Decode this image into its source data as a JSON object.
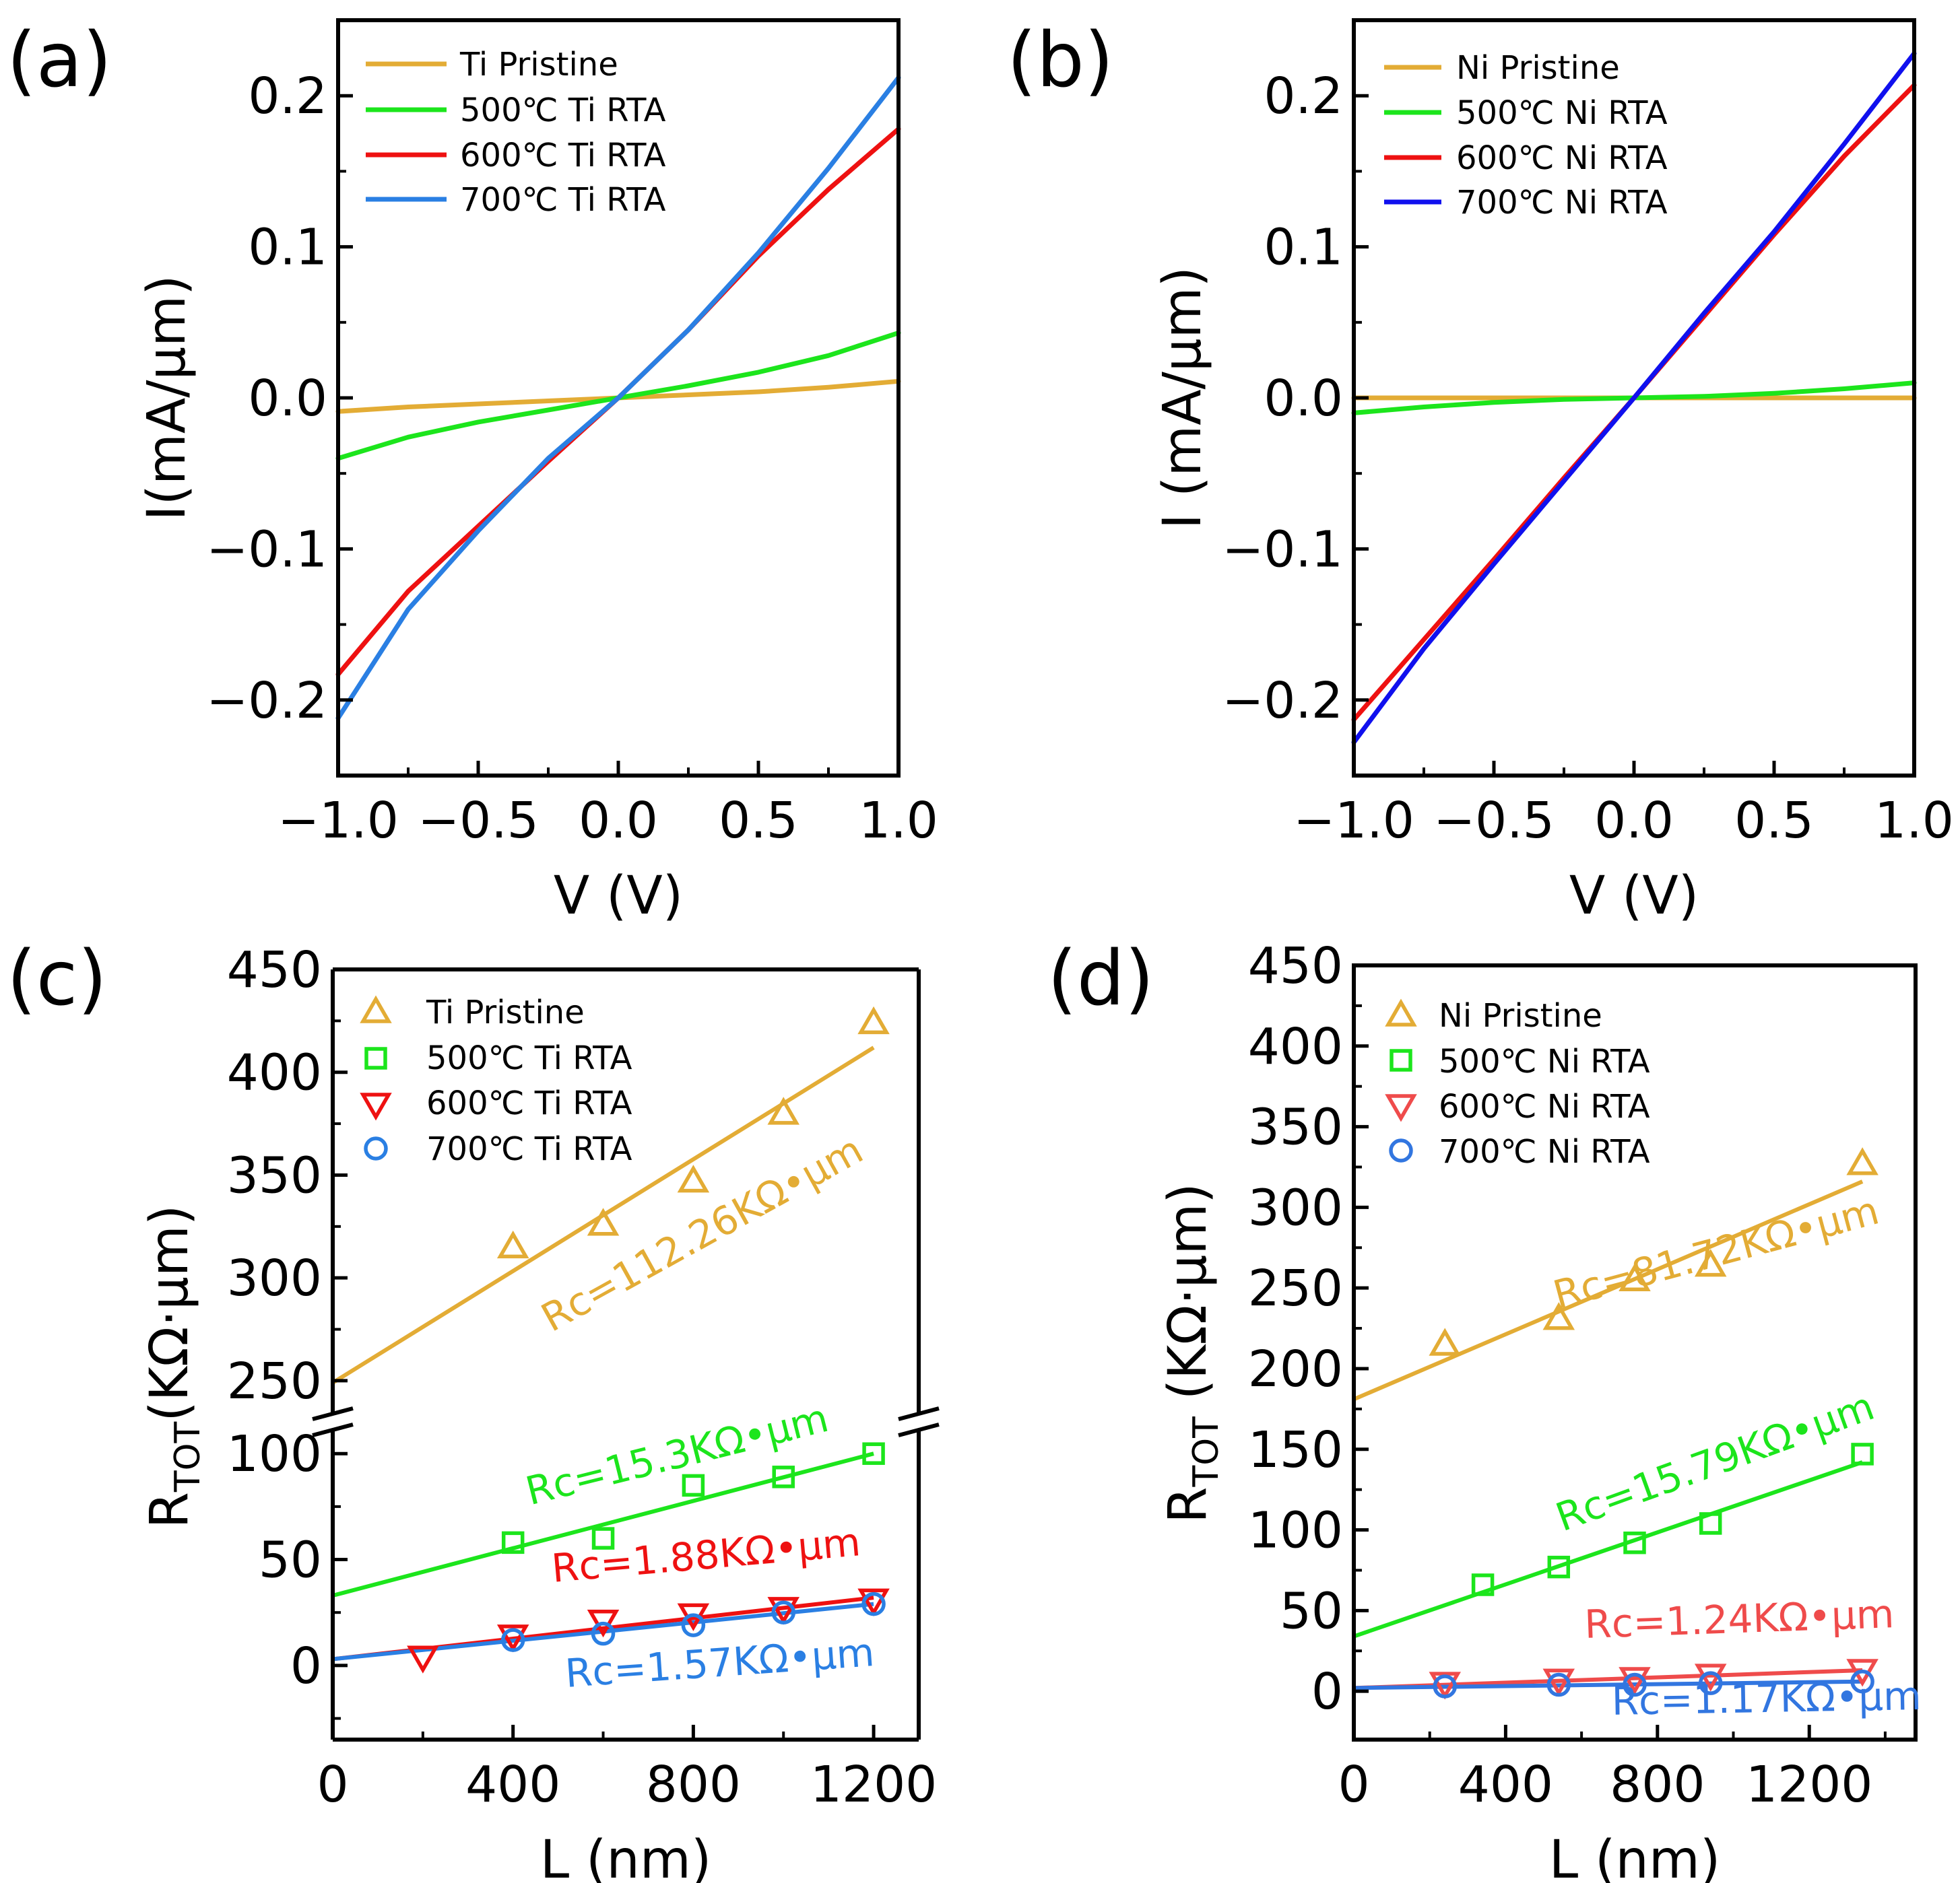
{
  "colors": {
    "gold": "#E3AC35",
    "green": "#1CE51C",
    "red": "#EE1111",
    "blue_a": "#2A7FE3",
    "blue_b": "#1010EE",
    "red_d": "#EF4B4B",
    "blue_d": "#3276E0",
    "axis": "#000000"
  },
  "chart_data": [
    {
      "panel": "(a)",
      "type": "line",
      "xlabel": "V (V)",
      "ylabel": "I(mA/μm)",
      "xlim": [
        -1.0,
        1.0
      ],
      "ylim": [
        -0.25,
        0.25
      ],
      "xticks": [
        "−1.0",
        "−0.5",
        "0.0",
        "0.5",
        "1.0"
      ],
      "xtick_values": [
        -1.0,
        -0.5,
        0.0,
        0.5,
        1.0
      ],
      "yticks": [
        "−0.2",
        "−0.1",
        "0.0",
        "0.1",
        "0.2"
      ],
      "ytick_values": [
        -0.2,
        -0.1,
        0.0,
        0.1,
        0.2
      ],
      "legend": [
        "Ti Pristine",
        "500℃ Ti RTA",
        "600℃ Ti RTA",
        "700℃ Ti RTA"
      ],
      "series": [
        {
          "name": "Ti Pristine",
          "color": "gold",
          "x": [
            -1.0,
            -0.75,
            -0.5,
            -0.25,
            0.0,
            0.25,
            0.5,
            0.75,
            1.0
          ],
          "y": [
            -0.009,
            -0.006,
            -0.004,
            -0.002,
            0.0,
            0.002,
            0.004,
            0.007,
            0.011
          ]
        },
        {
          "name": "500℃ Ti RTA",
          "color": "green",
          "x": [
            -1.0,
            -0.75,
            -0.5,
            -0.25,
            0.0,
            0.25,
            0.5,
            0.75,
            1.0
          ],
          "y": [
            -0.04,
            -0.026,
            -0.016,
            -0.008,
            0.0,
            0.008,
            0.017,
            0.028,
            0.043
          ]
        },
        {
          "name": "600℃ Ti RTA",
          "color": "red",
          "x": [
            -1.0,
            -0.75,
            -0.5,
            -0.25,
            0.0,
            0.25,
            0.5,
            0.75,
            1.0
          ],
          "y": [
            -0.183,
            -0.128,
            -0.085,
            -0.042,
            0.0,
            0.045,
            0.094,
            0.138,
            0.178
          ]
        },
        {
          "name": "700℃ Ti RTA",
          "color": "blue_a",
          "x": [
            -1.0,
            -0.75,
            -0.5,
            -0.25,
            0.0,
            0.25,
            0.5,
            0.75,
            1.0
          ],
          "y": [
            -0.212,
            -0.14,
            -0.088,
            -0.04,
            0.0,
            0.045,
            0.096,
            0.152,
            0.212
          ]
        }
      ]
    },
    {
      "panel": "(b)",
      "type": "line",
      "xlabel": "V (V)",
      "ylabel": "I (mA/μm)",
      "xlim": [
        -1.0,
        1.0
      ],
      "ylim": [
        -0.25,
        0.25
      ],
      "xticks": [
        "−1.0",
        "−0.5",
        "0.0",
        "0.5",
        "1.0"
      ],
      "xtick_values": [
        -1.0,
        -0.5,
        0.0,
        0.5,
        1.0
      ],
      "yticks": [
        "−0.2",
        "−0.1",
        "0.0",
        "0.1",
        "0.2"
      ],
      "ytick_values": [
        -0.2,
        -0.1,
        0.0,
        0.1,
        0.2
      ],
      "legend": [
        "Ni Pristine",
        "500℃ Ni RTA",
        "600℃ Ni RTA",
        "700℃ Ni RTA"
      ],
      "series": [
        {
          "name": "Ni Pristine",
          "color": "gold",
          "x": [
            -1.0,
            -0.5,
            0.0,
            0.5,
            1.0
          ],
          "y": [
            0.0,
            0.0,
            0.0,
            0.0,
            0.0
          ]
        },
        {
          "name": "500℃ Ni RTA",
          "color": "green",
          "x": [
            -1.0,
            -0.75,
            -0.5,
            -0.25,
            0.0,
            0.25,
            0.5,
            0.75,
            1.0
          ],
          "y": [
            -0.01,
            -0.006,
            -0.003,
            -0.001,
            0.0,
            0.001,
            0.003,
            0.006,
            0.01
          ]
        },
        {
          "name": "600℃ Ni RTA",
          "color": "red",
          "x": [
            -1.0,
            -0.75,
            -0.5,
            -0.25,
            0.0,
            0.25,
            0.5,
            0.75,
            1.0
          ],
          "y": [
            -0.213,
            -0.16,
            -0.107,
            -0.053,
            0.0,
            0.054,
            0.108,
            0.16,
            0.207
          ]
        },
        {
          "name": "700℃ Ni RTA",
          "color": "blue_b",
          "x": [
            -1.0,
            -0.75,
            -0.5,
            -0.25,
            0.0,
            0.25,
            0.5,
            0.75,
            1.0
          ],
          "y": [
            -0.228,
            -0.166,
            -0.11,
            -0.055,
            0.0,
            0.056,
            0.11,
            0.168,
            0.228
          ]
        }
      ]
    },
    {
      "panel": "(c)",
      "type": "scatter",
      "xlabel": "L (nm)",
      "ylabel_main": "R",
      "ylabel_sub": "TOT",
      "ylabel_rest": "(KΩ·μm)",
      "xlim": [
        0,
        1300
      ],
      "ylim_lower": [
        -35,
        115
      ],
      "ylim_upper": [
        230,
        450
      ],
      "xticks": [
        "0",
        "400",
        "800",
        "1200"
      ],
      "xtick_values": [
        0,
        400,
        800,
        1200
      ],
      "yticks_lower": [
        "0",
        "50",
        "100"
      ],
      "ytick_values_lower": [
        0,
        50,
        100
      ],
      "yticks_upper": [
        "250",
        "300",
        "350",
        "400",
        "450"
      ],
      "ytick_values_upper": [
        250,
        300,
        350,
        400,
        450
      ],
      "legend": [
        "Ti Pristine",
        "500℃ Ti RTA",
        "600℃ Ti RTA",
        "700℃ Ti RTA"
      ],
      "series": [
        {
          "name": "Ti Pristine",
          "marker": "triangle-up",
          "color": "gold",
          "x": [
            400,
            600,
            800,
            1000,
            1200
          ],
          "y": [
            315,
            326,
            347,
            380,
            424
          ],
          "fit": {
            "x": [
              0,
              1200
            ],
            "y": [
              249,
              412
            ]
          }
        },
        {
          "name": "500℃ Ti RTA",
          "marker": "square",
          "color": "green",
          "x": [
            400,
            600,
            800,
            1000,
            1200
          ],
          "y": [
            58,
            60,
            85,
            89,
            100
          ],
          "fit": {
            "x": [
              0,
              1200
            ],
            "y": [
              33,
              100
            ]
          }
        },
        {
          "name": "600℃ Ti RTA",
          "marker": "triangle-down",
          "color": "red",
          "x": [
            200,
            400,
            600,
            800,
            1000,
            1200
          ],
          "y": [
            4,
            14,
            21,
            24,
            27,
            31
          ],
          "fit": {
            "x": [
              0,
              1200
            ],
            "y": [
              3,
              32
            ]
          }
        },
        {
          "name": "700℃ Ti RTA",
          "marker": "circle",
          "color": "blue_a",
          "x": [
            400,
            600,
            800,
            1000,
            1200
          ],
          "y": [
            12,
            15,
            19,
            25,
            29
          ],
          "fit": {
            "x": [
              0,
              1200
            ],
            "y": [
              3,
              29
            ]
          }
        }
      ],
      "annotations": [
        "Rc=112.26KΩ•μm",
        "Rc=15.3KΩ•μm",
        "Rc=1.88KΩ•μm",
        "Rc=1.57KΩ•μm"
      ]
    },
    {
      "panel": "(d)",
      "type": "scatter",
      "xlabel": "L (nm)",
      "ylabel_main": "R",
      "ylabel_sub": "TOT",
      "ylabel_rest": " (KΩ·μm)",
      "xlim": [
        0,
        1480
      ],
      "ylim": [
        -30,
        450
      ],
      "xticks": [
        "0",
        "400",
        "800",
        "1200"
      ],
      "xtick_values": [
        0,
        400,
        800,
        1200
      ],
      "yticks": [
        "0",
        "50",
        "100",
        "150",
        "200",
        "250",
        "300",
        "350",
        "400",
        "450"
      ],
      "ytick_values": [
        0,
        50,
        100,
        150,
        200,
        250,
        300,
        350,
        400,
        450
      ],
      "legend": [
        "Ni Pristine",
        "500℃ Ni RTA",
        "600℃ Ni RTA",
        "700℃ Ni RTA"
      ],
      "series": [
        {
          "name": "Ni Pristine",
          "marker": "triangle-up",
          "color": "gold",
          "x": [
            240,
            540,
            740,
            940,
            1340
          ],
          "y": [
            215,
            231,
            255,
            264,
            327
          ],
          "fit": {
            "x": [
              0,
              1340
            ],
            "y": [
              181,
              316
            ]
          }
        },
        {
          "name": "500℃ Ni RTA",
          "marker": "square",
          "color": "green",
          "x": [
            340,
            540,
            740,
            940,
            1340
          ],
          "y": [
            66,
            77,
            92,
            104,
            147
          ],
          "fit": {
            "x": [
              0,
              1340
            ],
            "y": [
              34,
              142
            ]
          }
        },
        {
          "name": "600℃ Ni RTA",
          "marker": "triangle-down",
          "color": "red_d",
          "x": [
            240,
            540,
            740,
            940,
            1340
          ],
          "y": [
            5,
            7,
            8,
            10,
            13
          ],
          "fit": {
            "x": [
              0,
              1340
            ],
            "y": [
              2,
              13
            ]
          }
        },
        {
          "name": "700℃ Ni RTA",
          "marker": "circle",
          "color": "blue_d",
          "x": [
            240,
            540,
            740,
            940,
            1340
          ],
          "y": [
            3,
            4,
            4,
            5,
            6
          ],
          "fit": {
            "x": [
              0,
              1340
            ],
            "y": [
              2,
              6
            ]
          }
        }
      ],
      "annotations": [
        "Rc=81.72KΩ•μm",
        "Rc=15.79KΩ•μm",
        "Rc=1.24KΩ•μm",
        "Rc=1.17KΩ•μm"
      ]
    }
  ]
}
